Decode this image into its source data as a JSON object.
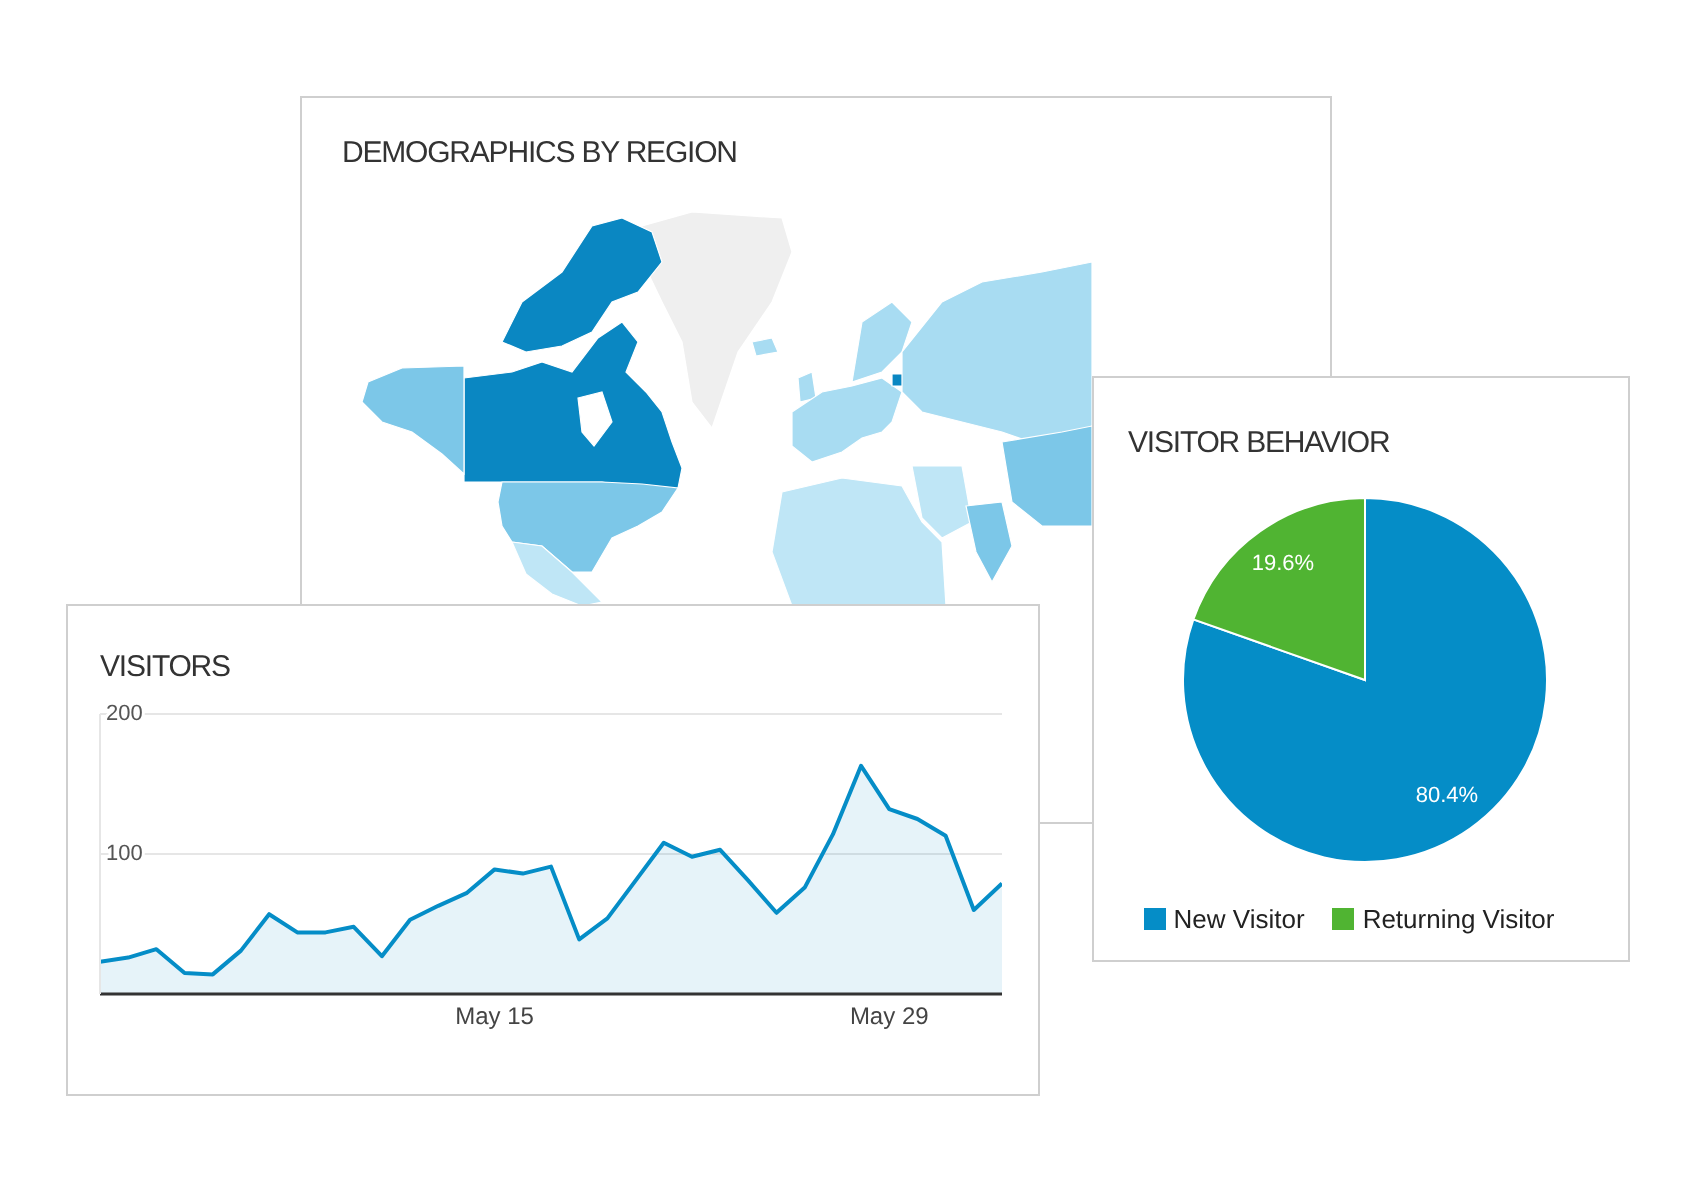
{
  "chart_data": [
    {
      "type": "other",
      "title": "DEMOGRAPHICS BY REGION"
    },
    {
      "type": "area",
      "title": "VISITORS",
      "x": [
        "--05-01",
        "--05-02",
        "--05-03",
        "--05-04",
        "--05-05",
        "--05-06",
        "--05-07",
        "--05-08",
        "--05-09",
        "--05-10",
        "--05-11",
        "--05-12",
        "--05-13",
        "--05-14",
        "--05-15",
        "--05-16",
        "--05-17",
        "--05-18",
        "--05-19",
        "--05-20",
        "--05-21",
        "--05-22",
        "--05-23",
        "--05-24",
        "--05-25",
        "--05-26",
        "--05-27",
        "--05-28",
        "--05-29",
        "--05-30",
        "--05-31",
        "--06-01",
        "--06-02"
      ],
      "values": [
        23,
        26,
        32,
        15,
        14,
        31,
        57,
        44,
        44,
        48,
        27,
        53,
        63,
        72,
        89,
        86,
        91,
        39,
        54,
        81,
        108,
        98,
        103,
        81,
        58,
        76,
        114,
        163,
        132,
        125,
        113,
        60,
        79
      ],
      "color": "#058dc7",
      "xlim": [
        "--05-01",
        "--06-02"
      ],
      "xticks": [
        {
          "value": "--05-15",
          "label": "May 15"
        },
        {
          "value": "--05-29",
          "label": "May 29"
        }
      ],
      "ylim": [
        0,
        200
      ],
      "yticks": [
        100,
        200
      ],
      "grid": "y"
    },
    {
      "type": "pie",
      "title": "VISITOR BEHAVIOR",
      "categories": [
        "New Visitor",
        "Returning Visitor"
      ],
      "values": [
        80.4,
        19.6
      ],
      "colors": [
        "#058dc7",
        "#50b432"
      ],
      "value_labels": [
        "80.4%",
        "19.6%"
      ],
      "legend": "bottom"
    }
  ]
}
